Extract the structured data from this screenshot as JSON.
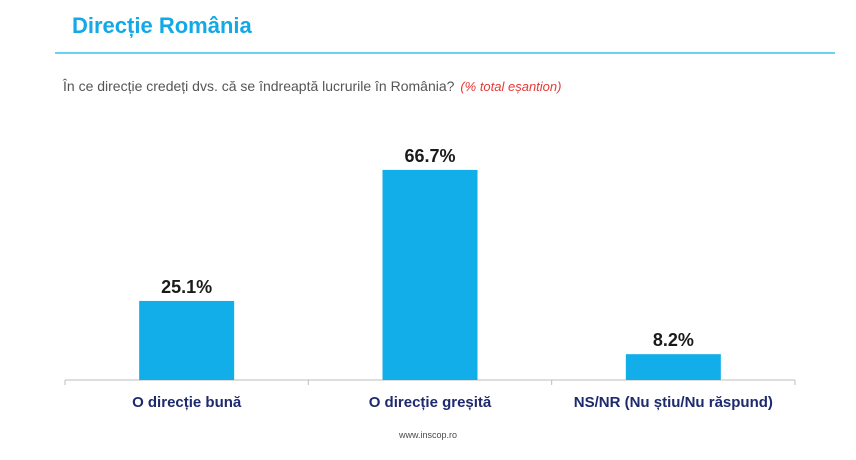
{
  "header": {
    "title": "Direcție România"
  },
  "question": {
    "text": "În ce direcție credeți dvs. că se îndreaptă lucrurile în România?",
    "note": "(% total eșantion)"
  },
  "chart_data": {
    "type": "bar",
    "categories": [
      "O direcție bună",
      "O direcție greșită",
      "NS/NR (Nu știu/Nu răspund)"
    ],
    "values": [
      25.1,
      66.7,
      8.2
    ],
    "data_labels": [
      "25.1%",
      "66.7%",
      "8.2%"
    ],
    "title": "",
    "xlabel": "",
    "ylabel": "",
    "ylim": [
      0,
      100
    ],
    "grid": false,
    "legend": "none",
    "colors": {
      "bar": "#12aeea",
      "axis": "#bdbdbd",
      "label": "#1a1a1a",
      "category": "#1e2a6e"
    }
  },
  "footer": {
    "source": "www.inscop.ro"
  }
}
